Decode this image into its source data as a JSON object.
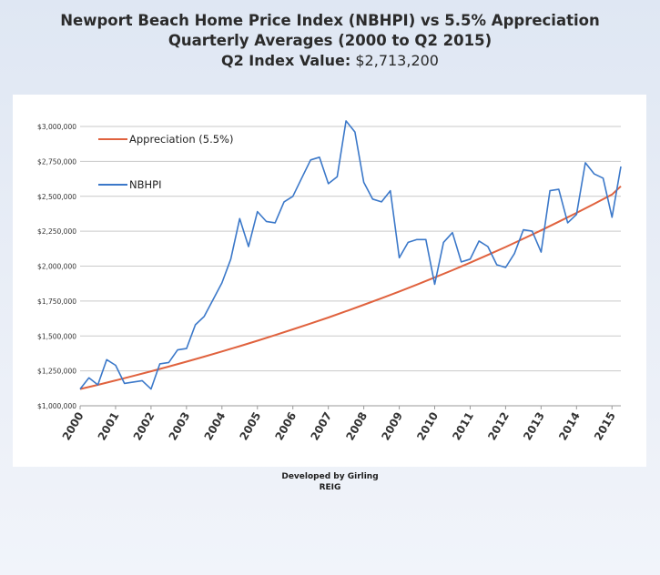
{
  "title": {
    "line1": "Newport Beach Home Price Index (NBHPI) vs 5.5% Appreciation",
    "line2": "Quarterly Averages (2000 to Q2 2015)",
    "line3_label": "Q2 Index Value:",
    "line3_value": "$2,713,200"
  },
  "footer": {
    "line1": "Developed by Girling",
    "line2": "REIG"
  },
  "colors": {
    "nbhpi": "#3b78c9",
    "appreciation": "#e0623e",
    "grid": "#c9c9c9"
  },
  "chart_data": {
    "type": "line",
    "title": "Newport Beach Home Price Index (NBHPI) vs 5.5% Appreciation",
    "subtitle": "Quarterly Averages (2000 to Q2 2015)",
    "ylim": [
      1000000,
      3000000
    ],
    "y_ticks": [
      {
        "value": 1000000,
        "label": "$1,000,000"
      },
      {
        "value": 1250000,
        "label": "$1,250,000"
      },
      {
        "value": 1500000,
        "label": "$1,500,000"
      },
      {
        "value": 1750000,
        "label": "$1,750,000"
      },
      {
        "value": 2000000,
        "label": "$2,000,000"
      },
      {
        "value": 2250000,
        "label": "$2,250,000"
      },
      {
        "value": 2500000,
        "label": "$2,500,000"
      },
      {
        "value": 2750000,
        "label": "$2,750,000"
      },
      {
        "value": 3000000,
        "label": "$3,000,000"
      }
    ],
    "x_ticks": [
      "2000",
      "2001",
      "2002",
      "2003",
      "2004",
      "2005",
      "2006",
      "2007",
      "2008",
      "2009",
      "2010",
      "2011",
      "2012",
      "2013",
      "2014",
      "2015"
    ],
    "xlim": [
      2000,
      2015.25
    ],
    "grid": true,
    "legend_position": "top-left",
    "series": [
      {
        "name": "Appreciation (5.5%)",
        "color": "#e0623e",
        "x": [
          2000,
          2000.5,
          2001,
          2001.5,
          2002,
          2002.5,
          2003,
          2003.5,
          2004,
          2004.5,
          2005,
          2005.5,
          2006,
          2006.5,
          2007,
          2007.5,
          2008,
          2008.5,
          2009,
          2009.5,
          2010,
          2010.5,
          2011,
          2011.5,
          2012,
          2012.5,
          2013,
          2013.5,
          2014,
          2014.5,
          2015,
          2015.25
        ],
        "y": [
          1120000,
          1150000,
          1182000,
          1214000,
          1247000,
          1281000,
          1316000,
          1352000,
          1389000,
          1427000,
          1466000,
          1506000,
          1547000,
          1589000,
          1632000,
          1677000,
          1723000,
          1770000,
          1818000,
          1868000,
          1919000,
          1971000,
          2025000,
          2080000,
          2137000,
          2196000,
          2256000,
          2318000,
          2381000,
          2446000,
          2513000,
          2572000
        ]
      },
      {
        "name": "NBHPI",
        "color": "#3b78c9",
        "x": [
          2000,
          2000.25,
          2000.5,
          2000.75,
          2001,
          2001.25,
          2001.5,
          2001.75,
          2002,
          2002.25,
          2002.5,
          2002.75,
          2003,
          2003.25,
          2003.5,
          2003.75,
          2004,
          2004.25,
          2004.5,
          2004.75,
          2005,
          2005.25,
          2005.5,
          2005.75,
          2006,
          2006.25,
          2006.5,
          2006.75,
          2007,
          2007.25,
          2007.5,
          2007.75,
          2008,
          2008.25,
          2008.5,
          2008.75,
          2009,
          2009.25,
          2009.5,
          2009.75,
          2010,
          2010.25,
          2010.5,
          2010.75,
          2011,
          2011.25,
          2011.5,
          2011.75,
          2012,
          2012.25,
          2012.5,
          2012.75,
          2013,
          2013.25,
          2013.5,
          2013.75,
          2014,
          2014.25,
          2014.5,
          2014.75,
          2015,
          2015.25
        ],
        "y": [
          1120000,
          1200000,
          1150000,
          1330000,
          1290000,
          1160000,
          1170000,
          1180000,
          1120000,
          1300000,
          1310000,
          1400000,
          1410000,
          1580000,
          1640000,
          1760000,
          1880000,
          2050000,
          2340000,
          2140000,
          2390000,
          2320000,
          2310000,
          2460000,
          2500000,
          2630000,
          2760000,
          2780000,
          2590000,
          2640000,
          3040000,
          2960000,
          2600000,
          2480000,
          2460000,
          2540000,
          2060000,
          2170000,
          2190000,
          2190000,
          1870000,
          2170000,
          2240000,
          2030000,
          2050000,
          2180000,
          2140000,
          2010000,
          1990000,
          2090000,
          2260000,
          2250000,
          2100000,
          2540000,
          2550000,
          2310000,
          2370000,
          2740000,
          2660000,
          2630000,
          2350000,
          2713200
        ]
      }
    ]
  }
}
